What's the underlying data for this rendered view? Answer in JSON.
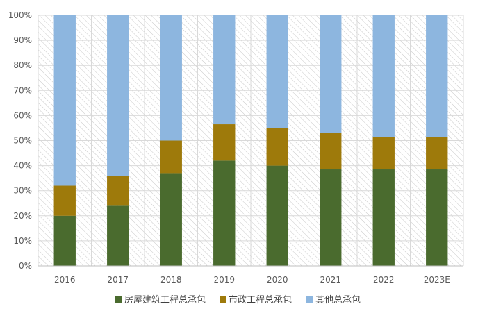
{
  "chart_data": {
    "type": "bar",
    "stacked": true,
    "categories": [
      "2016",
      "2017",
      "2018",
      "2019",
      "2020",
      "2021",
      "2022",
      "2023E"
    ],
    "series": [
      {
        "name": "房屋建筑工程总承包",
        "color": "#4a6b2e",
        "values": [
          20,
          24,
          37,
          42,
          40,
          38.5,
          38.5,
          38.5
        ]
      },
      {
        "name": "市政工程总承包",
        "color": "#9e7a0b",
        "values": [
          12,
          12,
          13,
          14.5,
          15,
          14.5,
          13,
          13
        ]
      },
      {
        "name": "其他总承包",
        "color": "#8db6df",
        "values": [
          68,
          64,
          50,
          43.5,
          45,
          47,
          48.5,
          48.5
        ]
      }
    ],
    "ylim": [
      0,
      100
    ],
    "y_ticks": [
      "0%",
      "10%",
      "20%",
      "30%",
      "40%",
      "50%",
      "60%",
      "70%",
      "80%",
      "90%",
      "100%"
    ],
    "grid": true,
    "legend_position": "bottom"
  }
}
